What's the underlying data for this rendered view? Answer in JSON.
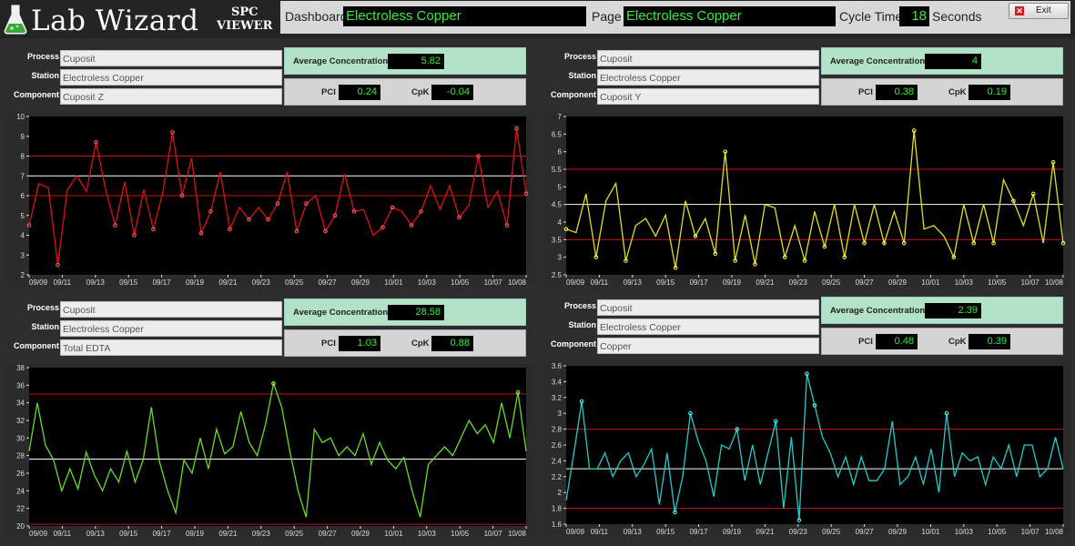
{
  "app": {
    "name": "Lab Wizard",
    "subtitle_line1": "SPC",
    "subtitle_line2": "VIEWER"
  },
  "topbar": {
    "dashboard_label": "Dashboard",
    "dashboard_value": "Electroless Copper",
    "page_label": "Page",
    "page_value": "Electroless Copper",
    "cycle_label": "Cycle Time",
    "cycle_value": "18",
    "cycle_unit": "Seconds",
    "exit_label": "Exit"
  },
  "labels": {
    "process": "Process",
    "station": "Station",
    "component": "Component",
    "avg": "Average Concentration",
    "pci": "PCI",
    "cpk": "CpK"
  },
  "panels": [
    {
      "process": "Cuposit",
      "station": "Electroless Copper",
      "component": "Cuposit Z",
      "avg": "5.82",
      "pci": "0.24",
      "cpk": "-0.04",
      "chart_data": {
        "type": "line",
        "line_color": "#dd1111",
        "point_color": "#ff6666",
        "ylim": [
          2,
          10
        ],
        "yticks": [
          "2",
          "3",
          "4",
          "5",
          "6",
          "7",
          "8",
          "9",
          "10"
        ],
        "xticks": [
          "09/09",
          "09/11",
          "09/13",
          "09/15",
          "09/17",
          "09/19",
          "09/21",
          "09/23",
          "09/25",
          "09/27",
          "09/29",
          "10/01",
          "10/03",
          "10/05",
          "10/07",
          "10/08"
        ],
        "center": 7.0,
        "ucl": 8.0,
        "lcl": 6.0,
        "values": [
          4.5,
          6.6,
          6.4,
          2.5,
          6.3,
          7.0,
          6.2,
          8.7,
          6.3,
          4.5,
          6.7,
          4.0,
          6.3,
          4.3,
          6.2,
          9.2,
          6.0,
          7.9,
          4.1,
          5.2,
          7.2,
          4.3,
          5.4,
          4.8,
          5.4,
          4.8,
          5.6,
          7.2,
          4.2,
          5.6,
          6.0,
          4.2,
          5.0,
          7.1,
          5.2,
          5.3,
          4.0,
          4.4,
          5.4,
          5.2,
          4.5,
          5.2,
          6.5,
          5.3,
          6.5,
          4.9,
          5.5,
          8.0,
          5.4,
          6.2,
          4.5,
          9.4,
          6.1
        ],
        "marked": [
          0,
          3,
          7,
          9,
          11,
          13,
          15,
          16,
          18,
          19,
          21,
          23,
          25,
          26,
          28,
          29,
          31,
          32,
          34,
          37,
          38,
          40,
          41,
          45,
          47,
          50,
          51,
          52
        ]
      }
    },
    {
      "process": "Cuposit",
      "station": "Electroless Copper",
      "component": "Cuposit Y",
      "avg": "4",
      "pci": "0.38",
      "cpk": "0.19",
      "chart_data": {
        "type": "line",
        "line_color": "#e8dc23",
        "point_color": "#ffff55",
        "ylim": [
          2.5,
          7
        ],
        "yticks": [
          "2.5",
          "3",
          "3.5",
          "4",
          "4.5",
          "5",
          "5.5",
          "6",
          "6.5",
          "7"
        ],
        "xticks": [
          "09/09",
          "09/11",
          "09/13",
          "09/15",
          "09/17",
          "09/19",
          "09/21",
          "09/23",
          "09/25",
          "09/27",
          "09/29",
          "10/01",
          "10/03",
          "10/05",
          "10/07",
          "10/08"
        ],
        "center": 4.5,
        "ucl": 5.5,
        "lcl": 3.5,
        "values": [
          3.8,
          3.7,
          4.8,
          3.0,
          4.6,
          5.1,
          2.9,
          3.9,
          4.1,
          3.6,
          4.2,
          2.7,
          4.6,
          3.6,
          4.1,
          3.1,
          6.0,
          2.9,
          4.2,
          2.8,
          4.5,
          4.4,
          3.0,
          3.9,
          2.9,
          4.3,
          3.3,
          4.5,
          3.0,
          4.5,
          3.4,
          4.5,
          3.4,
          4.3,
          3.4,
          6.6,
          3.8,
          3.9,
          3.6,
          3.0,
          4.5,
          3.4,
          4.5,
          3.4,
          5.2,
          4.6,
          3.9,
          4.8,
          3.4,
          5.7,
          3.4
        ],
        "marked": [
          0,
          3,
          6,
          11,
          13,
          15,
          16,
          17,
          19,
          22,
          24,
          26,
          28,
          30,
          32,
          34,
          35,
          39,
          41,
          43,
          45,
          47,
          49,
          50
        ]
      }
    },
    {
      "process": "Cuposit",
      "station": "Electroless Copper",
      "component": "Total EDTA",
      "avg": "28.58",
      "pci": "1.03",
      "cpk": "0.88",
      "chart_data": {
        "type": "line",
        "line_color": "#66dd22",
        "point_color": "#99ff55",
        "ylim": [
          20,
          38
        ],
        "yticks": [
          "20",
          "22",
          "24",
          "26",
          "28",
          "30",
          "32",
          "34",
          "36",
          "38"
        ],
        "xticks": [
          "09/09",
          "09/11",
          "09/13",
          "09/15",
          "09/17",
          "09/19",
          "09/21",
          "09/23",
          "09/25",
          "09/27",
          "09/29",
          "10/01",
          "10/03",
          "10/05",
          "10/07",
          "10/08"
        ],
        "center": 27.6,
        "ucl": 35.0,
        "lcl": 20.2,
        "values": [
          28.5,
          34.0,
          29.2,
          27.5,
          24.0,
          26.5,
          24.2,
          28.4,
          25.8,
          24.0,
          26.5,
          25.0,
          28.5,
          25.0,
          27.5,
          33.5,
          27.3,
          24.0,
          21.5,
          27.5,
          26.0,
          30.0,
          26.5,
          31.0,
          28.2,
          29.0,
          33.0,
          29.5,
          28.0,
          31.5,
          36.2,
          33.5,
          28.5,
          24.0,
          21.0,
          31.0,
          29.5,
          30.0,
          28.0,
          29.0,
          28.0,
          30.5,
          27.0,
          29.5,
          27.5,
          26.5,
          27.8,
          24.0,
          21.0,
          27.0,
          28.0,
          29.0,
          28.0,
          30.0,
          32.0,
          30.5,
          31.5,
          29.5,
          34.0,
          30.0,
          35.2,
          28.5
        ],
        "marked": [
          30,
          60
        ]
      }
    },
    {
      "process": "Cuposit",
      "station": "Electroless Copper",
      "component": "Copper",
      "avg": "2.39",
      "pci": "0.48",
      "cpk": "0.39",
      "chart_data": {
        "type": "line",
        "line_color": "#22cccc",
        "point_color": "#55ffff",
        "ylim": [
          1.6,
          3.6
        ],
        "yticks": [
          "1.6",
          "1.8",
          "2",
          "2.2",
          "2.4",
          "2.6",
          "2.8",
          "3",
          "3.2",
          "3.4",
          "3.6"
        ],
        "xticks": [
          "09/09",
          "09/11",
          "09/13",
          "09/15",
          "09/17",
          "09/19",
          "09/21",
          "09/23",
          "09/25",
          "09/27",
          "09/29",
          "10/01",
          "10/03",
          "10/05",
          "10/07",
          "10/08"
        ],
        "center": 2.3,
        "ucl": 2.8,
        "lcl": 1.8,
        "values": [
          1.9,
          2.5,
          3.15,
          2.3,
          2.3,
          2.5,
          2.2,
          2.4,
          2.5,
          2.2,
          2.35,
          2.55,
          1.85,
          2.5,
          1.75,
          2.2,
          3.0,
          2.65,
          2.4,
          1.95,
          2.6,
          2.55,
          2.8,
          2.15,
          2.6,
          2.1,
          2.5,
          2.9,
          1.8,
          2.7,
          1.65,
          3.5,
          3.1,
          2.7,
          2.5,
          2.2,
          2.45,
          2.1,
          2.45,
          2.15,
          2.15,
          2.3,
          2.9,
          2.1,
          2.2,
          2.45,
          2.1,
          2.55,
          2.0,
          3.0,
          2.2,
          2.5,
          2.4,
          2.45,
          2.1,
          2.45,
          2.3,
          2.6,
          2.2,
          2.6,
          2.6,
          2.2,
          2.3,
          2.7,
          2.3
        ],
        "marked": [
          2,
          14,
          16,
          22,
          27,
          30,
          31,
          32,
          49
        ]
      }
    }
  ]
}
